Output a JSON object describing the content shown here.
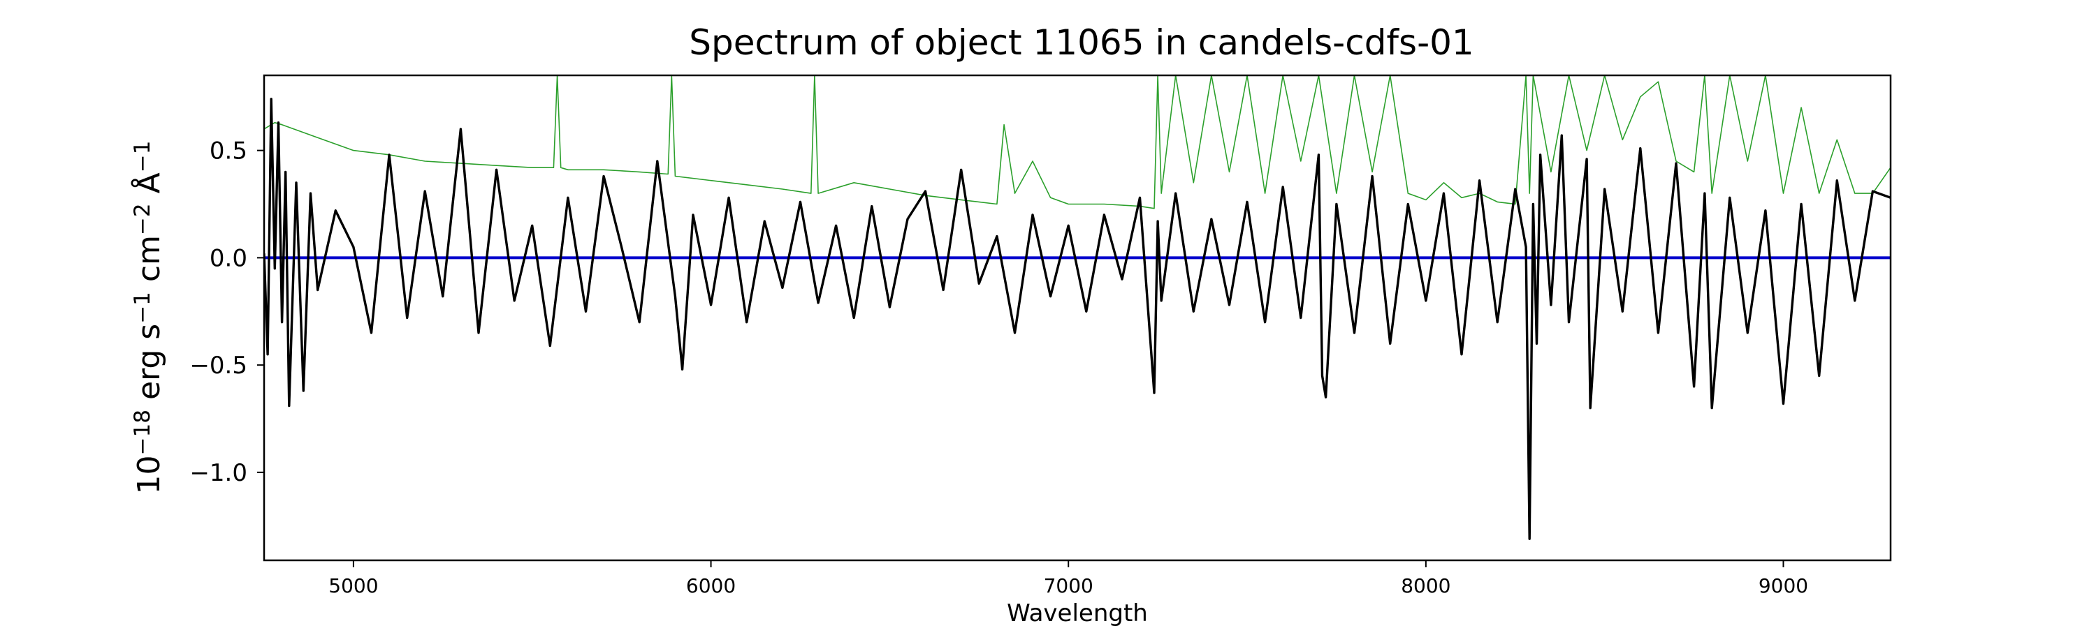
{
  "chart_data": {
    "type": "line",
    "title": "Spectrum of object 11065 in candels-cdfs-01",
    "xlabel": "Wavelength",
    "ylabel_parts": [
      "10",
      "−18",
      " erg s",
      "−1",
      " cm",
      "−2",
      " Å",
      "−1"
    ],
    "xlim": [
      4750,
      9300
    ],
    "ylim": [
      -1.41,
      0.85
    ],
    "x_ticks": [
      5000,
      6000,
      7000,
      8000,
      9000
    ],
    "x_tick_labels": [
      "5000",
      "6000",
      "7000",
      "8000",
      "9000"
    ],
    "y_ticks": [
      0.5,
      0.0,
      -0.5,
      -1.0
    ],
    "y_tick_labels": [
      "0.5",
      "0.0",
      "−0.5",
      "−1.0"
    ],
    "grid": false,
    "colors": {
      "flux": "#000000",
      "error": "#2ca02c",
      "zero": "#0000cc"
    },
    "series": [
      {
        "key": "flux",
        "style": "thick-black",
        "x": [
          4750,
          4760,
          4770,
          4780,
          4790,
          4800,
          4810,
          4820,
          4840,
          4860,
          4880,
          4900,
          4950,
          5000,
          5050,
          5100,
          5150,
          5200,
          5250,
          5300,
          5350,
          5400,
          5450,
          5500,
          5550,
          5600,
          5650,
          5700,
          5750,
          5800,
          5850,
          5900,
          5920,
          5950,
          6000,
          6050,
          6100,
          6150,
          6200,
          6250,
          6300,
          6350,
          6400,
          6450,
          6500,
          6550,
          6600,
          6650,
          6700,
          6750,
          6800,
          6850,
          6900,
          6950,
          7000,
          7050,
          7100,
          7150,
          7200,
          7240,
          7250,
          7260,
          7300,
          7350,
          7400,
          7450,
          7500,
          7550,
          7600,
          7650,
          7700,
          7710,
          7720,
          7750,
          7800,
          7850,
          7900,
          7950,
          8000,
          8050,
          8100,
          8150,
          8200,
          8250,
          8280,
          8290,
          8300,
          8310,
          8320,
          8350,
          8380,
          8400,
          8450,
          8460,
          8500,
          8550,
          8600,
          8650,
          8700,
          8750,
          8780,
          8800,
          8850,
          8900,
          8950,
          9000,
          9050,
          9100,
          9150,
          9200,
          9250,
          9300
        ],
        "y": [
          0.02,
          -0.45,
          0.74,
          -0.05,
          0.63,
          -0.3,
          0.4,
          -0.69,
          0.35,
          -0.62,
          0.3,
          -0.15,
          0.22,
          0.05,
          -0.35,
          0.48,
          -0.28,
          0.31,
          -0.18,
          0.6,
          -0.35,
          0.41,
          -0.2,
          0.15,
          -0.41,
          0.28,
          -0.25,
          0.38,
          0.05,
          -0.3,
          0.45,
          -0.18,
          -0.52,
          0.2,
          -0.22,
          0.28,
          -0.3,
          0.17,
          -0.14,
          0.26,
          -0.21,
          0.15,
          -0.28,
          0.24,
          -0.23,
          0.18,
          0.31,
          -0.15,
          0.41,
          -0.12,
          0.1,
          -0.35,
          0.2,
          -0.18,
          0.15,
          -0.25,
          0.2,
          -0.1,
          0.28,
          -0.63,
          0.17,
          -0.2,
          0.3,
          -0.25,
          0.18,
          -0.22,
          0.26,
          -0.3,
          0.33,
          -0.28,
          0.48,
          -0.55,
          -0.65,
          0.25,
          -0.35,
          0.38,
          -0.4,
          0.25,
          -0.2,
          0.3,
          -0.45,
          0.36,
          -0.3,
          0.32,
          0.05,
          -1.31,
          0.25,
          -0.4,
          0.48,
          -0.22,
          0.57,
          -0.3,
          0.46,
          -0.7,
          0.32,
          -0.25,
          0.51,
          -0.35,
          0.44,
          -0.6,
          0.3,
          -0.7,
          0.28,
          -0.35,
          0.22,
          -0.68,
          0.25,
          -0.55,
          0.36,
          -0.2,
          0.31,
          0.28
        ]
      },
      {
        "key": "error",
        "style": "thin-green",
        "x": [
          4750,
          4780,
          4800,
          4900,
          5000,
          5100,
          5200,
          5300,
          5400,
          5500,
          5560,
          5570,
          5580,
          5600,
          5700,
          5800,
          5880,
          5890,
          5900,
          6000,
          6100,
          6200,
          6280,
          6290,
          6300,
          6400,
          6500,
          6600,
          6700,
          6800,
          6820,
          6850,
          6900,
          6950,
          7000,
          7100,
          7200,
          7240,
          7250,
          7260,
          7300,
          7350,
          7400,
          7450,
          7500,
          7550,
          7600,
          7650,
          7700,
          7750,
          7800,
          7850,
          7900,
          7950,
          8000,
          8050,
          8100,
          8150,
          8200,
          8250,
          8280,
          8290,
          8300,
          8350,
          8400,
          8450,
          8500,
          8550,
          8600,
          8650,
          8700,
          8750,
          8780,
          8800,
          8850,
          8900,
          8950,
          9000,
          9050,
          9100,
          9150,
          9200,
          9250,
          9300
        ],
        "y": [
          0.6,
          0.63,
          0.62,
          0.56,
          0.5,
          0.48,
          0.45,
          0.44,
          0.43,
          0.42,
          0.42,
          0.85,
          0.42,
          0.41,
          0.41,
          0.4,
          0.39,
          0.85,
          0.38,
          0.36,
          0.34,
          0.32,
          0.3,
          0.85,
          0.3,
          0.35,
          0.32,
          0.29,
          0.27,
          0.25,
          0.62,
          0.3,
          0.45,
          0.28,
          0.25,
          0.25,
          0.24,
          0.23,
          0.85,
          0.3,
          0.85,
          0.35,
          0.85,
          0.4,
          0.85,
          0.3,
          0.85,
          0.45,
          0.85,
          0.3,
          0.85,
          0.4,
          0.85,
          0.3,
          0.27,
          0.35,
          0.28,
          0.3,
          0.26,
          0.25,
          0.85,
          0.3,
          0.85,
          0.4,
          0.85,
          0.5,
          0.85,
          0.55,
          0.75,
          0.82,
          0.45,
          0.4,
          0.85,
          0.3,
          0.85,
          0.45,
          0.85,
          0.3,
          0.7,
          0.3,
          0.55,
          0.3,
          0.3,
          0.42
        ]
      },
      {
        "key": "zero",
        "style": "blue-baseline",
        "x": [
          4750,
          9300
        ],
        "y": [
          0,
          0
        ]
      }
    ]
  }
}
